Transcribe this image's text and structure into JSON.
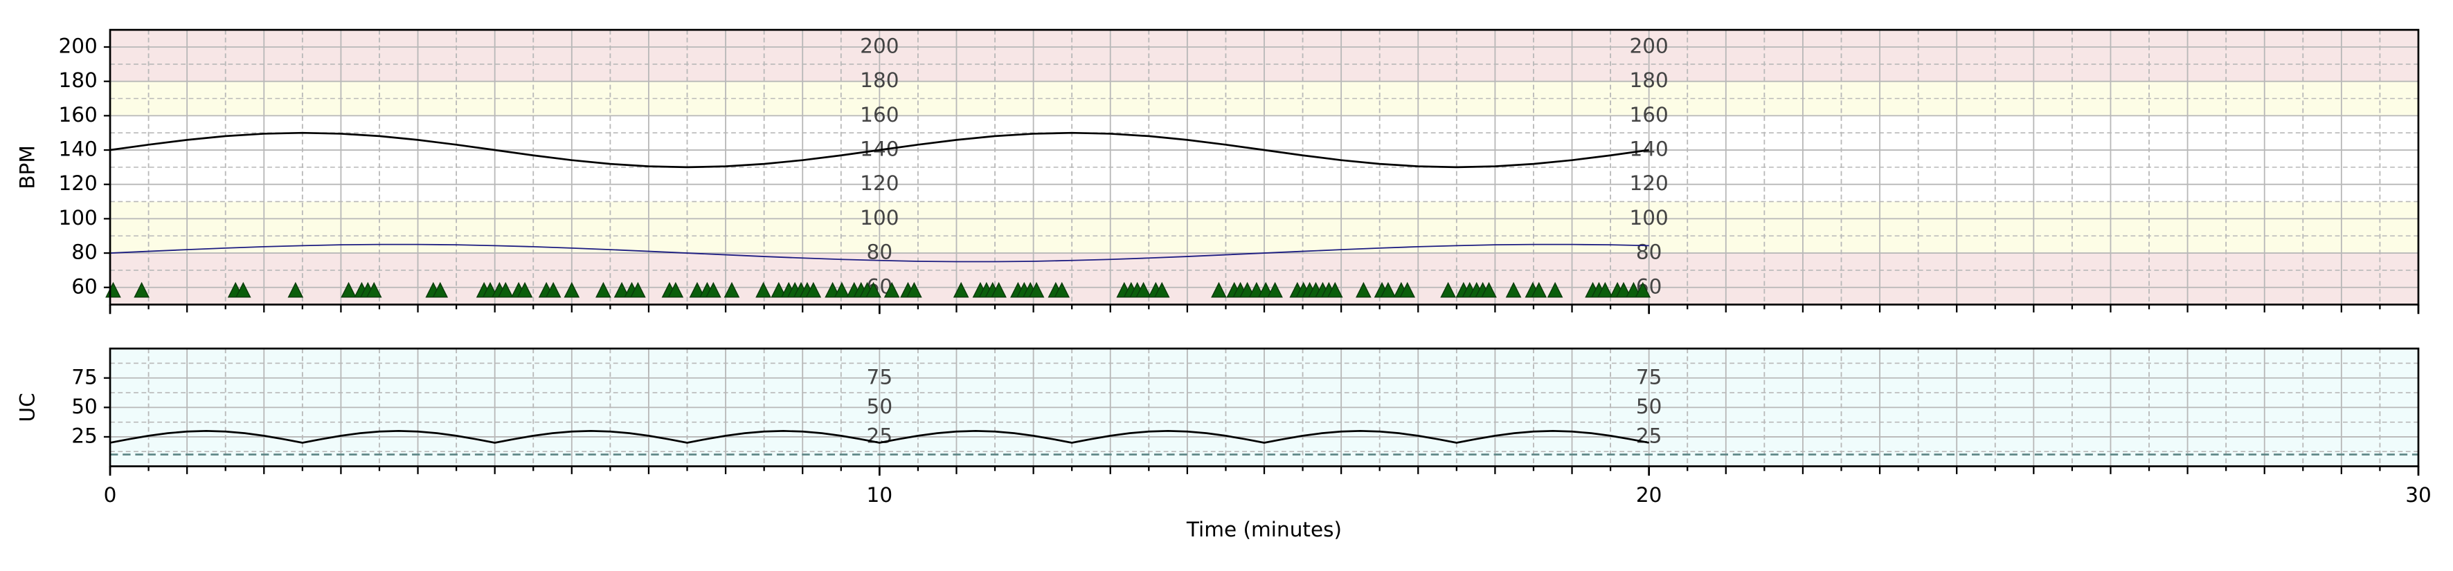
{
  "chart_data": [
    {
      "type": "line",
      "ylabel": "BPM",
      "xlim": [
        0,
        30
      ],
      "xticks": [
        0,
        10,
        20,
        30
      ],
      "show_xtick_labels": false,
      "xgrid_step": 1,
      "xgrid_minor_step": 0.5,
      "ylim": [
        50,
        210
      ],
      "yticks": [
        60,
        80,
        100,
        120,
        140,
        160,
        180,
        200
      ],
      "yminor_step": 10,
      "grid": true,
      "inner_tick_label_x": [
        10,
        20
      ],
      "bands": [
        {
          "from": 50,
          "to": 80,
          "color": "#f7e6e6"
        },
        {
          "from": 80,
          "to": 110,
          "color": "#fdfde6"
        },
        {
          "from": 110,
          "to": 160,
          "color": "#ffffff"
        },
        {
          "from": 160,
          "to": 180,
          "color": "#fdfde6"
        },
        {
          "from": 180,
          "to": 210,
          "color": "#f7e6e6"
        }
      ],
      "series": [
        {
          "color": "#000000",
          "width": 1.2,
          "x": [
            0,
            0.5,
            1,
            1.5,
            2,
            2.5,
            3,
            3.5,
            4,
            4.5,
            5,
            5.5,
            6,
            6.5,
            7,
            7.5,
            8,
            8.5,
            9,
            9.5,
            10,
            10.5,
            11,
            11.5,
            12,
            12.5,
            13,
            13.5,
            14,
            14.5,
            15,
            15.5,
            16,
            16.5,
            17,
            17.5,
            18,
            18.5,
            19,
            19.5,
            20
          ],
          "values": [
            140,
            143.1,
            145.9,
            148.1,
            149.5,
            150,
            149.5,
            148.1,
            145.9,
            143.1,
            140,
            136.9,
            134.1,
            131.9,
            130.5,
            130,
            130.5,
            131.9,
            134.1,
            136.9,
            140,
            143.1,
            145.9,
            148.1,
            149.5,
            150,
            149.5,
            148.1,
            145.9,
            143.1,
            140,
            136.9,
            134.1,
            131.9,
            130.5,
            130,
            130.5,
            131.9,
            134.1,
            136.9,
            140
          ]
        },
        {
          "color": "#1c1c80",
          "width": 0.8,
          "x": [
            0,
            0.5,
            1,
            1.5,
            2,
            2.5,
            3,
            3.5,
            4,
            4.5,
            5,
            5.5,
            6,
            6.5,
            7,
            7.5,
            8,
            8.5,
            9,
            9.5,
            10,
            10.5,
            11,
            11.5,
            12,
            12.5,
            13,
            13.5,
            14,
            14.5,
            15,
            15.5,
            16,
            16.5,
            17,
            17.5,
            18,
            18.5,
            19,
            19.5,
            20
          ],
          "values": [
            80,
            81,
            82,
            82.9,
            83.7,
            84.3,
            84.8,
            85,
            85,
            84.8,
            84.3,
            83.7,
            82.9,
            82,
            81,
            80,
            79,
            78,
            77.1,
            76.3,
            75.7,
            75.2,
            75,
            75,
            75.2,
            75.7,
            76.3,
            77.1,
            78,
            79,
            80,
            81,
            82,
            82.9,
            83.7,
            84.3,
            84.8,
            85,
            85,
            84.8,
            84.3
          ]
        },
        {
          "color": "#0b5e0b",
          "marker": "triangle",
          "x": [
            0.04,
            0.41,
            1.63,
            1.73,
            2.41,
            3.1,
            3.27,
            3.35,
            3.43,
            4.2,
            4.29,
            4.86,
            4.94,
            5.06,
            5.14,
            5.31,
            5.39,
            5.67,
            5.76,
            6.0,
            6.41,
            6.65,
            6.78,
            6.86,
            7.27,
            7.35,
            7.63,
            7.76,
            7.84,
            8.08,
            8.49,
            8.69,
            8.82,
            8.9,
            8.98,
            9.06,
            9.14,
            9.39,
            9.51,
            9.67,
            9.76,
            9.84,
            9.92,
            10.16,
            10.37,
            10.45,
            11.06,
            11.31,
            11.39,
            11.47,
            11.55,
            11.8,
            11.88,
            11.96,
            12.04,
            12.29,
            12.37,
            13.18,
            13.27,
            13.35,
            13.43,
            13.59,
            13.67,
            14.41,
            14.61,
            14.69,
            14.78,
            14.9,
            15.02,
            15.14,
            15.43,
            15.51,
            15.59,
            15.67,
            15.76,
            15.84,
            15.92,
            16.29,
            16.53,
            16.61,
            16.78,
            16.86,
            17.39,
            17.59,
            17.67,
            17.76,
            17.84,
            17.92,
            18.24,
            18.49,
            18.57,
            18.78,
            19.27,
            19.35,
            19.43,
            19.59,
            19.67,
            19.8,
            19.92
          ],
          "values": [
            58,
            58,
            58,
            58,
            58,
            58,
            58,
            58,
            58,
            58,
            58,
            58,
            58,
            58,
            58,
            58,
            58,
            58,
            58,
            58,
            58,
            58,
            58,
            58,
            58,
            58,
            58,
            58,
            58,
            58,
            58,
            58,
            58,
            58,
            58,
            58,
            58,
            58,
            58,
            58,
            58,
            58,
            58,
            58,
            58,
            58,
            58,
            58,
            58,
            58,
            58,
            58,
            58,
            58,
            58,
            58,
            58,
            58,
            58,
            58,
            58,
            58,
            58,
            58,
            58,
            58,
            58,
            58,
            58,
            58,
            58,
            58,
            58,
            58,
            58,
            58,
            58,
            58,
            58,
            58,
            58,
            58,
            58,
            58,
            58,
            58,
            58,
            58,
            58,
            58,
            58,
            58,
            58,
            58,
            58,
            58,
            58,
            58,
            58
          ]
        }
      ]
    },
    {
      "type": "line",
      "ylabel": "UC",
      "xlabel": "Time (minutes)",
      "xlim": [
        0,
        30
      ],
      "xticks": [
        0,
        10,
        20,
        30
      ],
      "show_xtick_labels": true,
      "xgrid_step": 1,
      "xgrid_minor_step": 0.5,
      "ylim": [
        0,
        100
      ],
      "yticks": [
        25,
        50,
        75
      ],
      "yminor_step": 12.5,
      "grid": true,
      "inner_tick_label_x": [
        10,
        20
      ],
      "bands": [
        {
          "from": 0,
          "to": 100,
          "color": "#f0fcfc"
        }
      ],
      "hlines": [
        {
          "y": 10,
          "color": "#5f8787"
        }
      ],
      "series": [
        {
          "color": "#000000",
          "width": 1.2,
          "x": [
            0,
            0.25,
            0.5,
            0.75,
            1,
            1.25,
            1.5,
            1.75,
            2,
            2.25,
            2.5,
            2.75,
            3,
            3.25,
            3.5,
            3.75,
            4,
            4.25,
            4.5,
            4.75,
            5,
            5.25,
            5.5,
            5.75,
            6,
            6.25,
            6.5,
            6.75,
            7,
            7.25,
            7.5,
            7.75,
            8,
            8.25,
            8.5,
            8.75,
            9,
            9.25,
            9.5,
            9.75,
            10,
            10.25,
            10.5,
            10.75,
            11,
            11.25,
            11.5,
            11.75,
            12,
            12.25,
            12.5,
            12.75,
            13,
            13.25,
            13.5,
            13.75,
            14,
            14.25,
            14.5,
            14.75,
            15,
            15.25,
            15.5,
            15.75,
            16,
            16.25,
            16.5,
            16.75,
            17,
            17.25,
            17.5,
            17.75,
            18,
            18.25,
            18.5,
            18.75,
            19,
            19.25,
            19.5,
            19.75,
            20
          ],
          "values": [
            20,
            23.1,
            25.9,
            28.1,
            29.5,
            30,
            29.5,
            28.1,
            25.9,
            23.1,
            20,
            23.1,
            25.9,
            28.1,
            29.5,
            30,
            29.5,
            28.1,
            25.9,
            23.1,
            20,
            23.1,
            25.9,
            28.1,
            29.5,
            30,
            29.5,
            28.1,
            25.9,
            23.1,
            20,
            23.1,
            25.9,
            28.1,
            29.5,
            30,
            29.5,
            28.1,
            25.9,
            23.1,
            20,
            23.1,
            25.9,
            28.1,
            29.5,
            30,
            29.5,
            28.1,
            25.9,
            23.1,
            20,
            23.1,
            25.9,
            28.1,
            29.5,
            30,
            29.5,
            28.1,
            25.9,
            23.1,
            20,
            23.1,
            25.9,
            28.1,
            29.5,
            30,
            29.5,
            28.1,
            25.9,
            23.1,
            20,
            23.1,
            25.9,
            28.1,
            29.5,
            30,
            29.5,
            28.1,
            25.9,
            23.1,
            20
          ]
        }
      ]
    }
  ]
}
